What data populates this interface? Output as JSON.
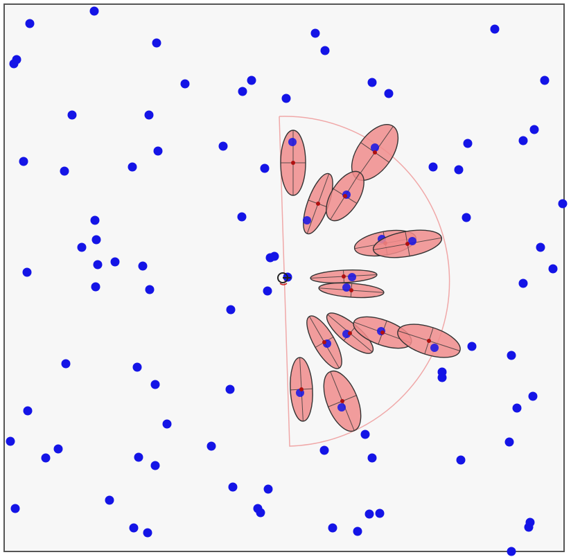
{
  "colors": {
    "background": "#f7f7f7",
    "border": "#555555",
    "landmark": "#1414e6",
    "ellipse_fill": "#f08c8c",
    "ellipse_stroke": "#333333",
    "fov_arc": "#f0a8a8",
    "robot": "#222222",
    "robot_heading": "#cc2222",
    "estimate_marker": "#b01010"
  },
  "icons": {
    "robot": "robot-pose-icon",
    "landmark": "landmark-dot-icon",
    "uncertainty": "covariance-ellipse-icon"
  }
}
